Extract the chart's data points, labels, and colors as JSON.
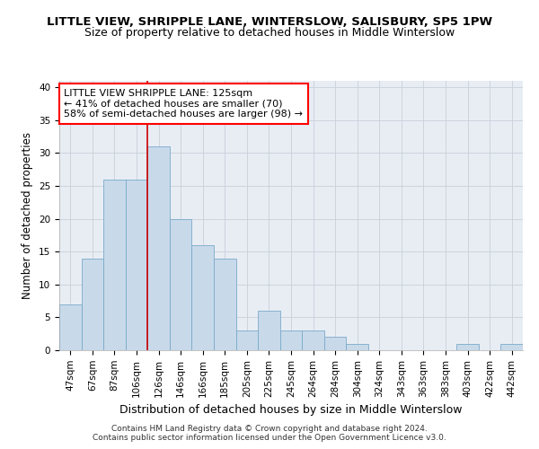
{
  "title": "LITTLE VIEW, SHRIPPLE LANE, WINTERSLOW, SALISBURY, SP5 1PW",
  "subtitle": "Size of property relative to detached houses in Middle Winterslow",
  "xlabel": "Distribution of detached houses by size in Middle Winterslow",
  "ylabel": "Number of detached properties",
  "categories": [
    "47sqm",
    "67sqm",
    "87sqm",
    "106sqm",
    "126sqm",
    "146sqm",
    "166sqm",
    "185sqm",
    "205sqm",
    "225sqm",
    "245sqm",
    "264sqm",
    "284sqm",
    "304sqm",
    "324sqm",
    "343sqm",
    "363sqm",
    "383sqm",
    "403sqm",
    "422sqm",
    "442sqm"
  ],
  "values": [
    7,
    14,
    26,
    26,
    31,
    20,
    16,
    14,
    3,
    6,
    3,
    3,
    2,
    1,
    0,
    0,
    0,
    0,
    1,
    0,
    1
  ],
  "bar_color": "#c8d9ea",
  "bar_edge_color": "#7aaac8",
  "vline_color": "#cc0000",
  "vline_x": 3.5,
  "annotation_text": "LITTLE VIEW SHRIPPLE LANE: 125sqm\n← 41% of detached houses are smaller (70)\n58% of semi-detached houses are larger (98) →",
  "annotation_box_color": "white",
  "annotation_box_edge_color": "red",
  "ylim": [
    0,
    41
  ],
  "yticks": [
    0,
    5,
    10,
    15,
    20,
    25,
    30,
    35,
    40
  ],
  "grid_color": "#c8d0da",
  "bg_color": "#e8edf4",
  "footer_line1": "Contains HM Land Registry data © Crown copyright and database right 2024.",
  "footer_line2": "Contains public sector information licensed under the Open Government Licence v3.0.",
  "title_fontsize": 9.5,
  "subtitle_fontsize": 9,
  "xlabel_fontsize": 9,
  "ylabel_fontsize": 8.5,
  "tick_fontsize": 7.5,
  "annotation_fontsize": 8,
  "footer_fontsize": 6.5
}
